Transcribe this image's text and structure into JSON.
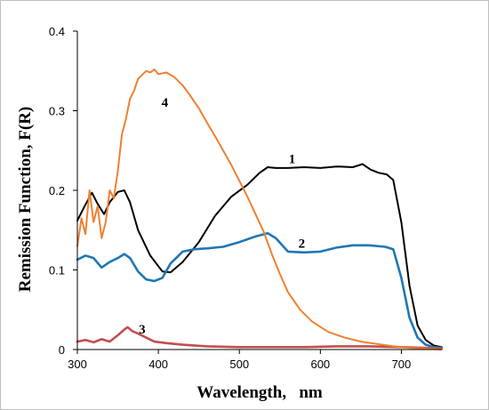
{
  "chart_data": {
    "type": "line",
    "title": "",
    "xlabel": "Wavelength,   nm",
    "ylabel": "Remission Function, F(R)",
    "xlim": [
      300,
      750
    ],
    "ylim": [
      0,
      0.4
    ],
    "xticks": [
      300,
      400,
      500,
      600,
      700
    ],
    "yticks": [
      0,
      0.1,
      0.2,
      0.3,
      0.4
    ],
    "xtick_labels": [
      "300",
      "400",
      "500",
      "600",
      "700"
    ],
    "ytick_labels": [
      "0",
      "0.1",
      "0.2",
      "0.3",
      "0.4"
    ],
    "grid": false,
    "series": [
      {
        "label": "1",
        "label_at": [
          565,
          0.234
        ],
        "color": "#000000",
        "x": [
          300,
          310,
          318,
          325,
          333,
          340,
          350,
          358,
          365,
          375,
          390,
          405,
          415,
          430,
          450,
          470,
          490,
          510,
          525,
          535,
          545,
          560,
          580,
          600,
          620,
          640,
          652,
          662,
          672,
          682,
          690,
          700,
          710,
          720,
          730,
          740,
          750
        ],
        "y": [
          0.162,
          0.182,
          0.197,
          0.183,
          0.17,
          0.185,
          0.198,
          0.2,
          0.185,
          0.15,
          0.118,
          0.098,
          0.097,
          0.11,
          0.135,
          0.168,
          0.192,
          0.207,
          0.222,
          0.229,
          0.228,
          0.228,
          0.229,
          0.228,
          0.23,
          0.229,
          0.233,
          0.226,
          0.222,
          0.22,
          0.213,
          0.16,
          0.08,
          0.03,
          0.012,
          0.005,
          0.003
        ]
      },
      {
        "label": "2",
        "label_at": [
          577,
          0.128
        ],
        "color": "#1f77b4",
        "x": [
          300,
          310,
          320,
          330,
          340,
          350,
          358,
          365,
          375,
          385,
          395,
          405,
          415,
          430,
          445,
          460,
          480,
          500,
          520,
          535,
          545,
          560,
          580,
          600,
          620,
          640,
          660,
          680,
          690,
          700,
          710,
          720,
          730,
          740,
          750
        ],
        "y": [
          0.113,
          0.118,
          0.115,
          0.103,
          0.11,
          0.115,
          0.12,
          0.115,
          0.098,
          0.088,
          0.086,
          0.09,
          0.108,
          0.123,
          0.126,
          0.127,
          0.129,
          0.135,
          0.142,
          0.146,
          0.14,
          0.123,
          0.122,
          0.123,
          0.128,
          0.131,
          0.131,
          0.129,
          0.126,
          0.09,
          0.04,
          0.015,
          0.006,
          0.003,
          0.002
        ]
      },
      {
        "label": "3",
        "label_at": [
          380,
          0.02
        ],
        "color": "#c0504d",
        "x": [
          300,
          310,
          320,
          330,
          340,
          350,
          358,
          362,
          368,
          375,
          385,
          395,
          410,
          430,
          460,
          500,
          540,
          580,
          620,
          660,
          700,
          730,
          750
        ],
        "y": [
          0.01,
          0.012,
          0.009,
          0.013,
          0.01,
          0.018,
          0.025,
          0.028,
          0.023,
          0.02,
          0.015,
          0.01,
          0.008,
          0.006,
          0.004,
          0.003,
          0.003,
          0.003,
          0.004,
          0.004,
          0.003,
          0.002,
          0.001
        ]
      },
      {
        "label": "4",
        "label_at": [
          408,
          0.305
        ],
        "color": "#f08030",
        "x": [
          300,
          305,
          310,
          315,
          320,
          325,
          330,
          335,
          340,
          345,
          350,
          355,
          360,
          365,
          370,
          375,
          380,
          385,
          390,
          395,
          400,
          410,
          420,
          430,
          440,
          450,
          460,
          470,
          480,
          490,
          500,
          510,
          520,
          530,
          540,
          550,
          560,
          575,
          590,
          610,
          630,
          650,
          670,
          690,
          710,
          730,
          750
        ],
        "y": [
          0.13,
          0.165,
          0.145,
          0.2,
          0.16,
          0.18,
          0.14,
          0.16,
          0.2,
          0.19,
          0.225,
          0.27,
          0.29,
          0.315,
          0.325,
          0.34,
          0.345,
          0.35,
          0.348,
          0.352,
          0.346,
          0.348,
          0.342,
          0.332,
          0.318,
          0.303,
          0.285,
          0.268,
          0.25,
          0.232,
          0.212,
          0.192,
          0.17,
          0.148,
          0.12,
          0.095,
          0.072,
          0.05,
          0.035,
          0.022,
          0.015,
          0.01,
          0.007,
          0.004,
          0.002,
          0.001,
          0.0
        ]
      }
    ]
  }
}
